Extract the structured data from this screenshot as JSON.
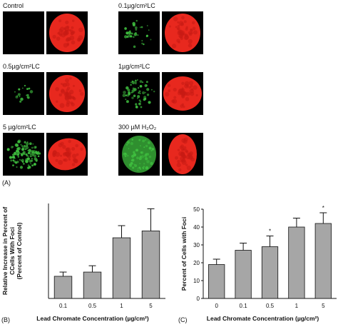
{
  "panel_a": {
    "label": "(A)",
    "rows": [
      {
        "left_label": "Control",
        "right_label": "0.1µg/cm²LC"
      },
      {
        "left_label": "0.5µg/cm²LC",
        "right_label": "1µg/cm²LC"
      },
      {
        "left_label": "5 µg/cm²LC",
        "right_label": "300 µM H₂O₂"
      }
    ],
    "colors": {
      "foci": "#3fbf3f",
      "nucleus": "#e8281e",
      "background": "#000000"
    }
  },
  "panel_b": {
    "label": "(B)"
  },
  "panel_c": {
    "label": "(C)"
  },
  "chart_data": [
    {
      "type": "bar",
      "categories": [
        "0.1",
        "0.5",
        "1",
        "5"
      ],
      "values": [
        42,
        50,
        115,
        128
      ],
      "errors": [
        8,
        12,
        23,
        42
      ],
      "ylabel": "Relative Increase in Percent of CCells With Foci (Percent of Control)",
      "xlabel": "Lead Chromate Concentration (µg/cm²)",
      "ylim": [
        0,
        180
      ],
      "bar_color": "#a6a6a6",
      "significance": [
        "",
        "",
        "",
        ""
      ]
    },
    {
      "type": "bar",
      "categories": [
        "0",
        "0.1",
        "0.5",
        "1",
        "5"
      ],
      "values": [
        19,
        27,
        29,
        40,
        42
      ],
      "errors": [
        3,
        4,
        6,
        5,
        6
      ],
      "ylabel": "Percent of Cells with Foci",
      "xlabel": "Lead Chromate Concentration (µg/cm²)",
      "ylim": [
        0,
        50
      ],
      "yticks": [
        0,
        10,
        20,
        30,
        40,
        50
      ],
      "bar_color": "#a6a6a6",
      "significance": [
        "",
        "",
        "*",
        "",
        "*"
      ]
    }
  ]
}
